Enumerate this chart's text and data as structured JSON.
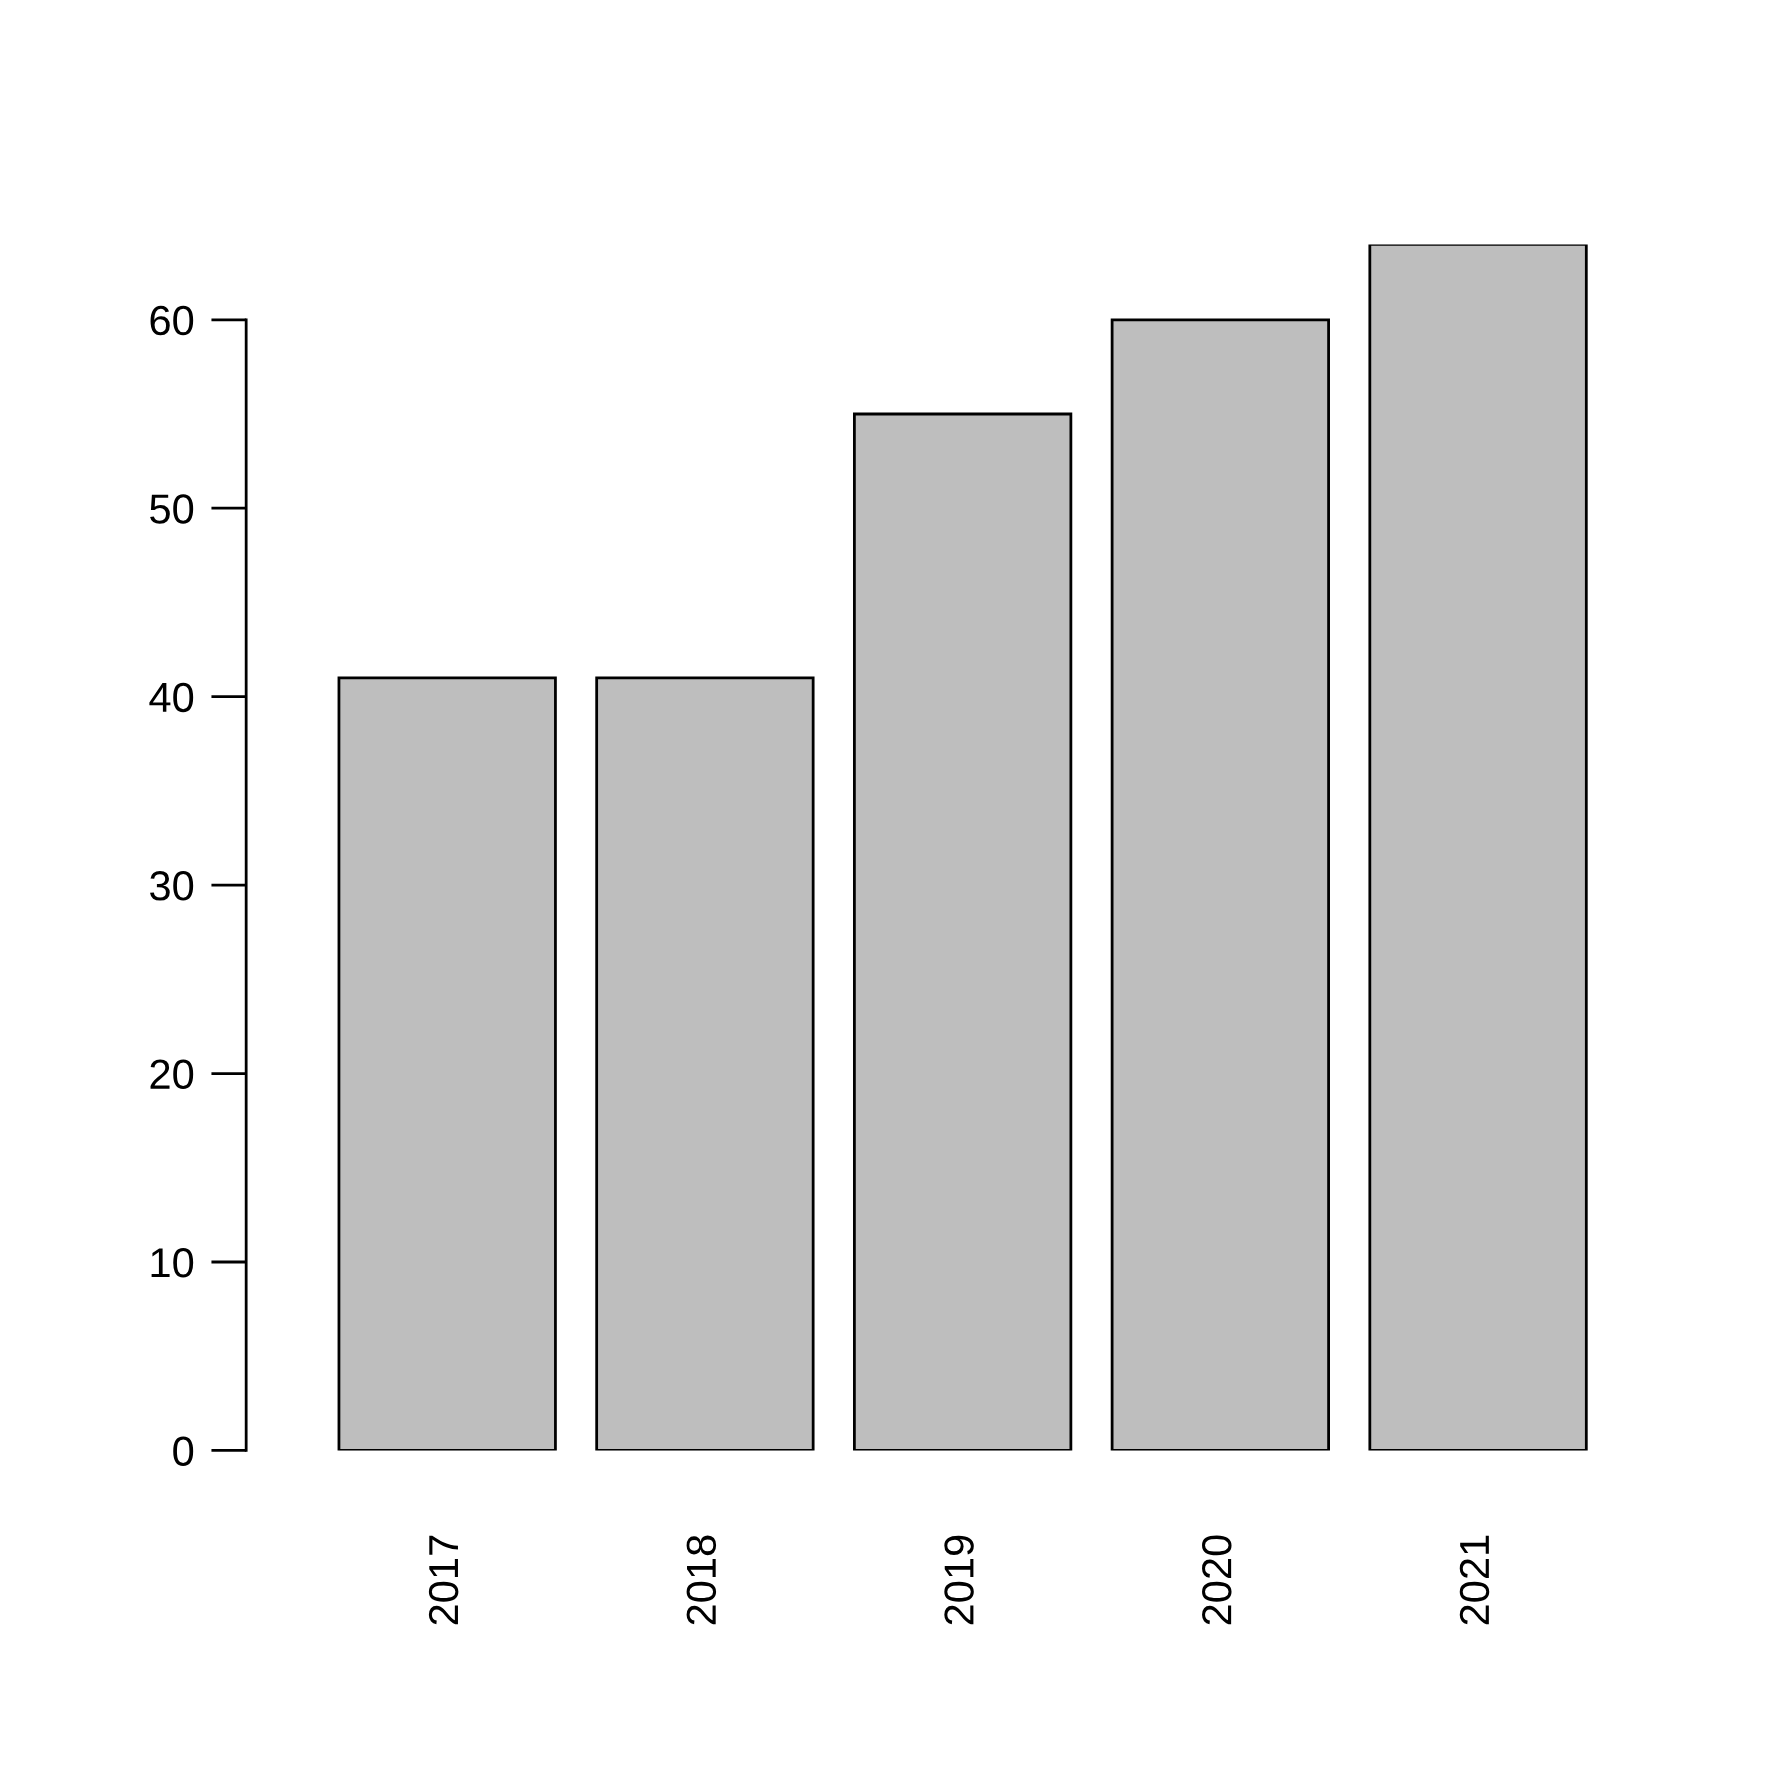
{
  "chart_data": {
    "type": "bar",
    "categories": [
      "2017",
      "2018",
      "2019",
      "2020",
      "2021"
    ],
    "values": [
      41,
      41,
      55,
      60,
      64
    ],
    "color": "#bebebe",
    "ylim": [
      0,
      64
    ],
    "yticks": [
      0,
      10,
      20,
      30,
      40,
      50,
      60
    ],
    "grid": false,
    "legend": false
  }
}
